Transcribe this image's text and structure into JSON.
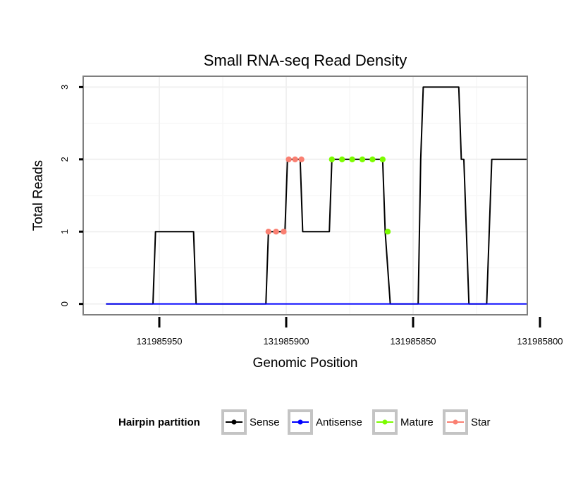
{
  "chart_data": {
    "type": "line",
    "title": "Small RNA-seq Read Density",
    "xlabel": "Genomic Position",
    "ylabel": "Total Reads",
    "x_reversed": true,
    "xlim": [
      131985980,
      131985805
    ],
    "ylim": [
      -0.15,
      3.15
    ],
    "xticks": [
      131985950,
      131985900,
      131985850,
      131985800
    ],
    "xtick_labels": [
      "131985950",
      "131985900",
      "131985850",
      "131985800"
    ],
    "yticks": [
      0,
      1,
      2,
      3
    ],
    "ytick_labels": [
      "0",
      "1",
      "2",
      "3"
    ],
    "grid": true,
    "legend": {
      "title": "Hairpin partition",
      "position": "bottom",
      "entries": [
        "Sense",
        "Antisense",
        "Mature",
        "Star"
      ]
    },
    "series": [
      {
        "name": "Sense",
        "color": "#000000",
        "marker": "line",
        "points": [
          [
            131985971,
            0
          ],
          [
            131985952.5,
            0
          ],
          [
            131985951.5,
            1
          ],
          [
            131985936.5,
            1
          ],
          [
            131985935.5,
            0
          ],
          [
            131985908,
            0
          ],
          [
            131985907,
            1
          ],
          [
            131985900.5,
            1
          ],
          [
            131985899.5,
            2
          ],
          [
            131985894.5,
            2
          ],
          [
            131985893.5,
            1
          ],
          [
            131985883,
            1
          ],
          [
            131985882,
            2
          ],
          [
            131985862,
            2
          ],
          [
            131985861,
            1
          ],
          [
            131985859,
            0
          ],
          [
            131985848,
            0
          ],
          [
            131985847,
            2
          ],
          [
            131985846,
            3
          ],
          [
            131985832,
            3
          ],
          [
            131985831,
            2
          ],
          [
            131985830,
            2
          ],
          [
            131985828,
            0
          ],
          [
            131985821,
            0
          ],
          [
            131985819,
            2
          ],
          [
            131985805,
            2
          ]
        ]
      },
      {
        "name": "Antisense",
        "color": "#0000ff",
        "marker": "line",
        "points": [
          [
            131985971,
            0
          ],
          [
            131985805,
            0
          ]
        ]
      },
      {
        "name": "Mature",
        "color": "#7cfc00",
        "marker": "points",
        "points": [
          [
            131985882,
            2
          ],
          [
            131985878,
            2
          ],
          [
            131985874,
            2
          ],
          [
            131985870,
            2
          ],
          [
            131985866,
            2
          ],
          [
            131985862,
            2
          ],
          [
            131985860,
            1
          ]
        ]
      },
      {
        "name": "Star",
        "color": "#fa8072",
        "marker": "points",
        "points": [
          [
            131985907,
            1
          ],
          [
            131985904,
            1
          ],
          [
            131985901,
            1
          ],
          [
            131985899,
            2
          ],
          [
            131985896.5,
            2
          ],
          [
            131985894,
            2
          ]
        ]
      }
    ]
  }
}
